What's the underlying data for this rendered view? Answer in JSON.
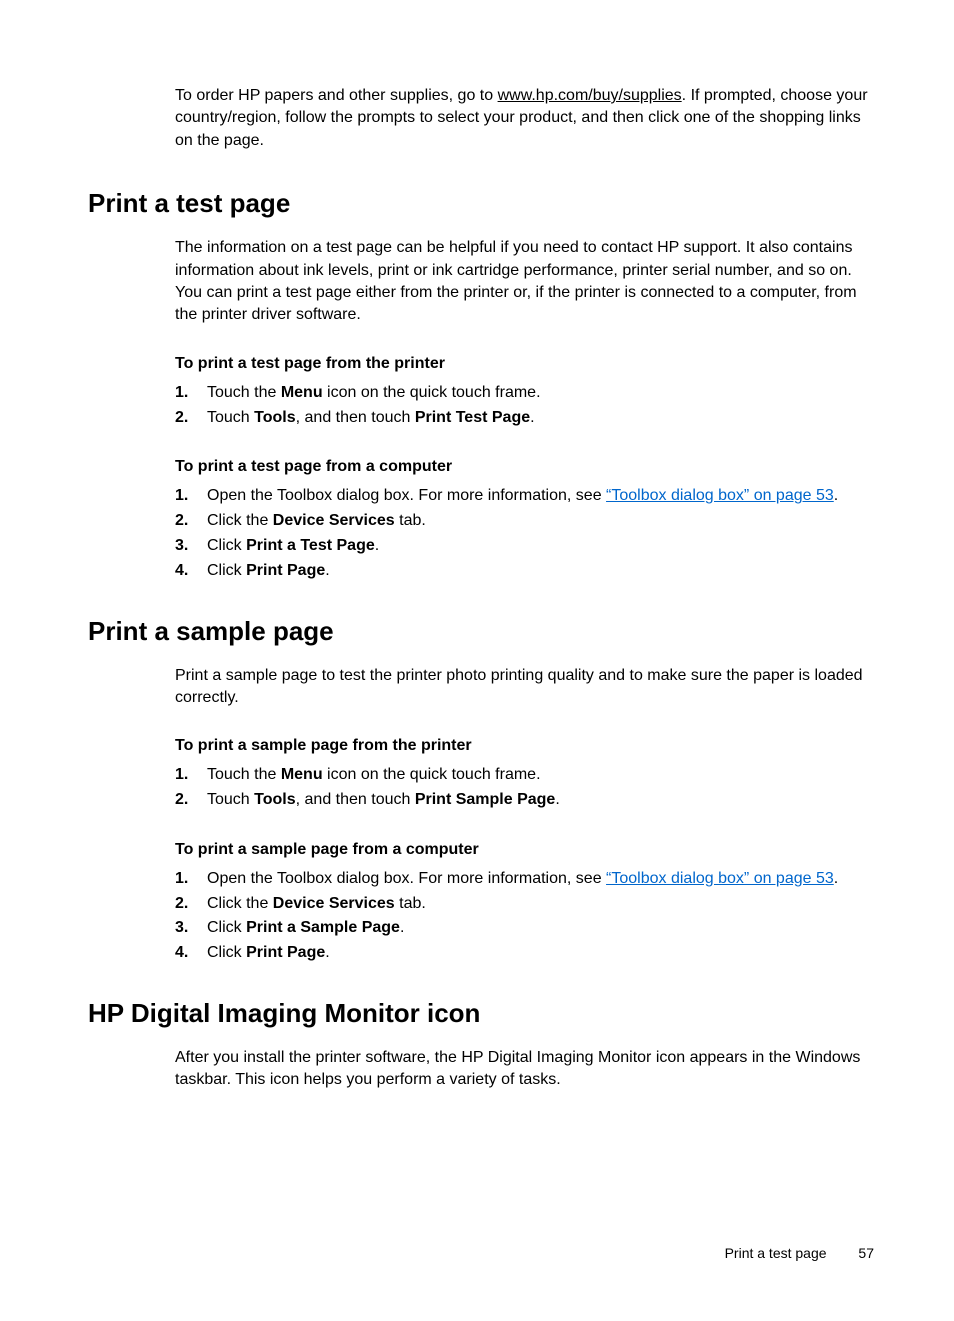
{
  "intro": {
    "pre": "To order HP papers and other supplies, go to ",
    "link_text": "www.hp.com/buy/supplies",
    "post": ". If prompted, choose your country/region, follow the prompts to select your product, and then click one of the shopping links on the page."
  },
  "section1": {
    "heading": "Print a test page",
    "para": "The information on a test page can be helpful if you need to contact HP support. It also contains information about ink levels, print or ink cartridge performance, printer serial number, and so on. You can print a test page either from the printer or, if the printer is connected to a computer, from the printer driver software.",
    "sub1": "To print a test page from the printer",
    "list1": {
      "item1_pre": "Touch the ",
      "item1_bold": "Menu",
      "item1_post": " icon on the quick touch frame.",
      "item2_pre": "Touch ",
      "item2_bold1": "Tools",
      "item2_mid": ", and then touch ",
      "item2_bold2": "Print Test Page",
      "item2_post": "."
    },
    "sub2": "To print a test page from a computer",
    "list2": {
      "item1_pre": "Open the Toolbox dialog box. For more information, see ",
      "item1_link": "“Toolbox dialog box” on page 53",
      "item1_post": ".",
      "item2_pre": "Click the ",
      "item2_bold": "Device Services",
      "item2_post": " tab.",
      "item3_pre": "Click ",
      "item3_bold": "Print a Test Page",
      "item3_post": ".",
      "item4_pre": "Click ",
      "item4_bold": "Print Page",
      "item4_post": "."
    }
  },
  "section2": {
    "heading": "Print a sample page",
    "para": "Print a sample page to test the printer photo printing quality and to make sure the paper is loaded correctly.",
    "sub1": "To print a sample page from the printer",
    "list1": {
      "item1_pre": "Touch the ",
      "item1_bold": "Menu",
      "item1_post": " icon on the quick touch frame.",
      "item2_pre": "Touch ",
      "item2_bold1": "Tools",
      "item2_mid": ", and then touch ",
      "item2_bold2": "Print Sample Page",
      "item2_post": "."
    },
    "sub2": "To print a sample page from a computer",
    "list2": {
      "item1_pre": "Open the Toolbox dialog box. For more information, see ",
      "item1_link": "“Toolbox dialog box” on page 53",
      "item1_post": ".",
      "item2_pre": "Click the ",
      "item2_bold": "Device Services",
      "item2_post": " tab.",
      "item3_pre": "Click ",
      "item3_bold": "Print a Sample Page",
      "item3_post": ".",
      "item4_pre": "Click ",
      "item4_bold": "Print Page",
      "item4_post": "."
    }
  },
  "section3": {
    "heading": "HP Digital Imaging Monitor icon",
    "para": "After you install the printer software, the HP Digital Imaging Monitor icon appears in the Windows taskbar. This icon helps you perform a variety of tasks."
  },
  "footer": {
    "label": "Print a test page",
    "page": "57"
  }
}
